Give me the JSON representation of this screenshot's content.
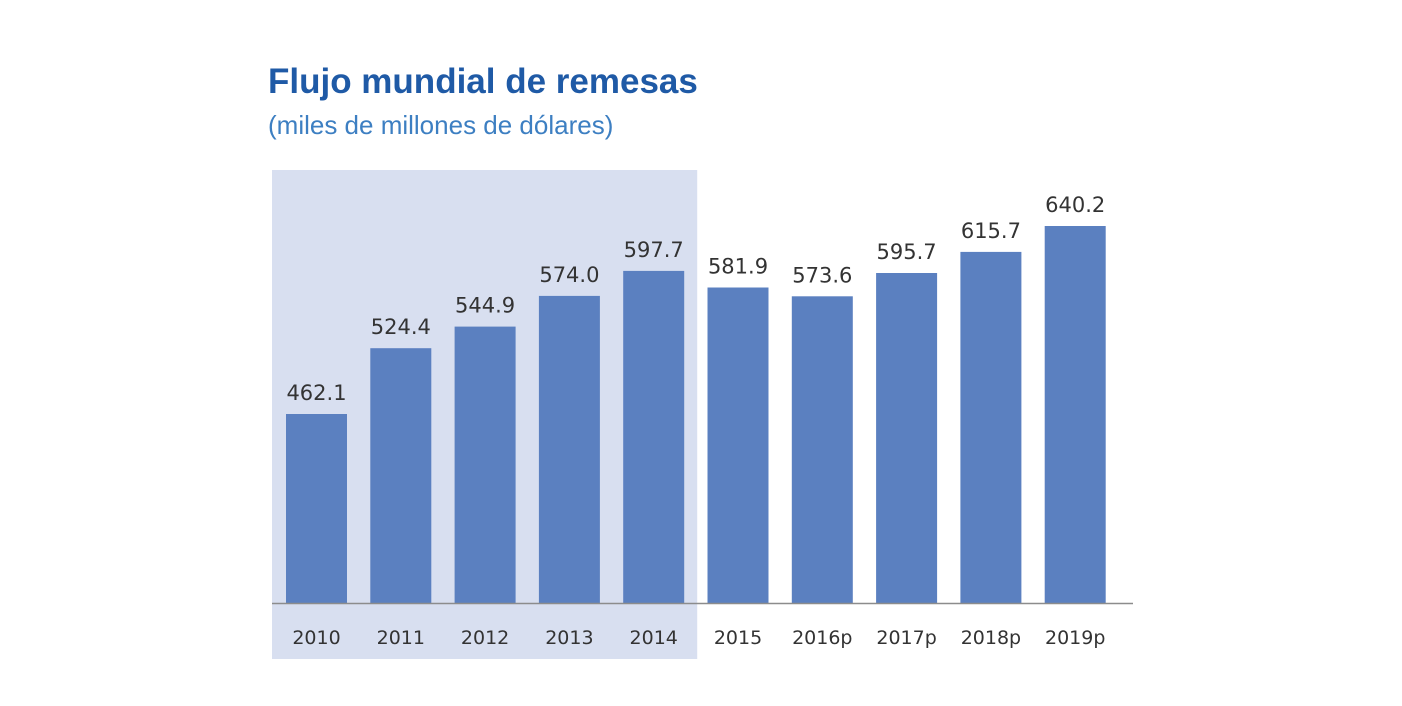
{
  "chart_data": {
    "type": "bar",
    "title": "Flujo mundial de remesas",
    "subtitle": "(miles de millones de dólares)",
    "xlabel": "",
    "ylabel": "",
    "categories": [
      "2010",
      "2011",
      "2012",
      "2013",
      "2014",
      "2015",
      "2016p",
      "2017p",
      "2018p",
      "2019p"
    ],
    "values": [
      462.1,
      524.4,
      544.9,
      574.0,
      597.7,
      581.9,
      573.6,
      595.7,
      615.7,
      640.2
    ],
    "value_labels": [
      "462.1",
      "524.4",
      "544.9",
      "574.0",
      "597.7",
      "581.9",
      "573.6",
      "595.7",
      "615.7",
      "640.2"
    ],
    "ylim": [
      283,
      660
    ],
    "highlighted_categories": [
      "2010",
      "2011",
      "2012",
      "2013",
      "2014"
    ],
    "grid": false,
    "legend": "none",
    "colors": {
      "bar": "#5b80c0",
      "highlight": "#d8dff0",
      "axis": "#8c8c8c",
      "title": "#1f5aa6",
      "subtitle": "#3d7fc2",
      "text": "#333333"
    }
  }
}
